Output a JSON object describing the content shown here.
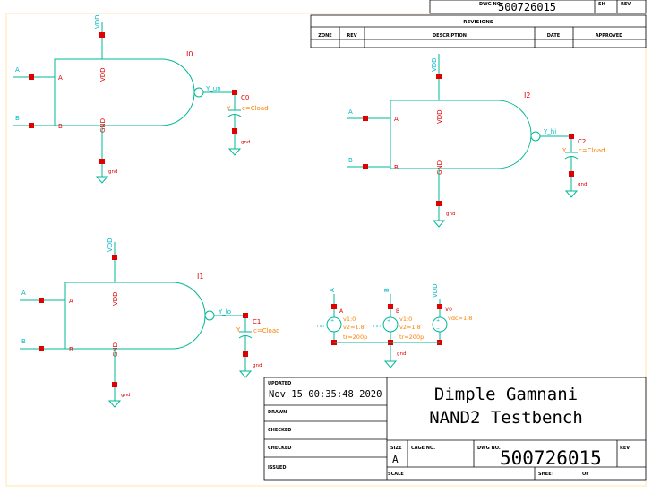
{
  "titleblock": {
    "dwg_no_label": "DWG NO.",
    "dwg_no_top": "500726015",
    "sh_label": "SH",
    "rev_label": "REV",
    "revisions_title": "REVISIONS",
    "rev_cols": [
      "ZONE",
      "REV",
      "DESCRIPTION",
      "DATE",
      "APPROVED"
    ],
    "updated_label": "UPDATED",
    "updated_value": "Nov 15 00:35:48 2020",
    "drawn_label": "DRAWN",
    "checked_label_1": "CHECKED",
    "checked_label_2": "CHECKED",
    "issued_label": "ISSUED",
    "author": "Dimple Gamnani",
    "title": "NAND2 Testbench",
    "size_label": "SIZE",
    "size_value": "A",
    "cage_label": "CAGE NO.",
    "dwg_no_label_2": "DWG NO.",
    "dwg_no_main": "500726015",
    "rev_label_2": "REV",
    "scale_label": "SCALE",
    "sheet_label": "SHEET",
    "of_label": "OF"
  },
  "gates": [
    {
      "inst": "I0",
      "vdd": "VDD",
      "gnd": "GND",
      "in_a": "A",
      "in_b": "B",
      "pin_a": "A",
      "pin_b": "B",
      "out_net": "Y_un",
      "gnd_net": "gnd",
      "cap": {
        "inst": "C0",
        "pin": "Y",
        "param": "c=Cload",
        "gnd": "gnd"
      }
    },
    {
      "inst": "I2",
      "vdd": "VDD",
      "gnd": "GND",
      "in_a": "A",
      "in_b": "B",
      "pin_a": "A",
      "pin_b": "B",
      "out_net": "Y_hi",
      "gnd_net": "gnd",
      "cap": {
        "inst": "C2",
        "pin": "Y",
        "param": "c=Cload",
        "gnd": "gnd"
      }
    },
    {
      "inst": "I1",
      "vdd": "VDD",
      "gnd": "GND",
      "in_a": "A",
      "in_b": "B",
      "pin_a": "A",
      "pin_b": "B",
      "out_net": "Y_lo",
      "gnd_net": "gnd",
      "cap": {
        "inst": "C1",
        "pin": "Y",
        "param": "c=Cload",
        "gnd": "gnd"
      }
    }
  ],
  "sources": {
    "nets": [
      "A",
      "B",
      "VDD"
    ],
    "labels": [
      "A",
      "B",
      "V0"
    ],
    "src_a": [
      "v1:0",
      "v2=1.8",
      "tr=200p"
    ],
    "src_b": [
      "v1:0",
      "v2=1.8",
      "tr=200p"
    ],
    "src_v": "vdc=1.8",
    "gnd": "gnd"
  },
  "colors": {
    "wire": "#00b894",
    "pin": "#e00000",
    "net": "#00b8c8",
    "param": "#ff7f00"
  }
}
